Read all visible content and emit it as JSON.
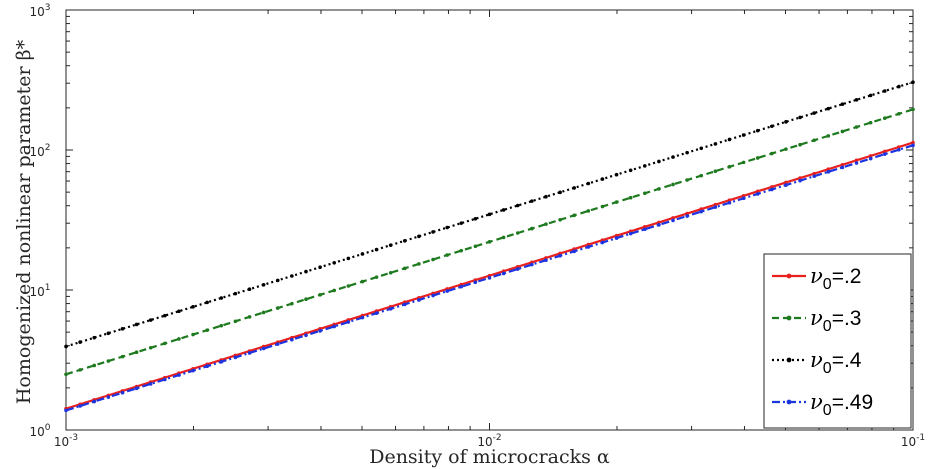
{
  "chart_data": {
    "type": "line",
    "xscale": "log",
    "yscale": "log",
    "xlim": [
      0.001,
      0.1
    ],
    "ylim": [
      1,
      1000
    ],
    "xlabel": "Density of microcracks α",
    "ylabel": "Homogenized nonlinear parameter β*",
    "xticks": [
      {
        "base": "10",
        "exp": "-3"
      },
      {
        "base": "10",
        "exp": "-2"
      },
      {
        "base": "10",
        "exp": "-1"
      }
    ],
    "yticks": [
      {
        "base": "10",
        "exp": "0"
      },
      {
        "base": "10",
        "exp": "1"
      },
      {
        "base": "10",
        "exp": "2"
      },
      {
        "base": "10",
        "exp": "3"
      }
    ],
    "grid": false,
    "legend_position": "bottom-right",
    "series": [
      {
        "name_sym": "ν",
        "name_sub": "0",
        "name_val": "=.2",
        "color": "#e8201e",
        "dash": "solid",
        "marker": "dot",
        "x": [
          0.001,
          0.1
        ],
        "y": [
          1.42,
          113
        ]
      },
      {
        "name_sym": "ν",
        "name_sub": "0",
        "name_val": "=.3",
        "color": "#1e7a1e",
        "dash": "dashed",
        "marker": "dot",
        "x": [
          0.001,
          0.1
        ],
        "y": [
          2.5,
          195
        ]
      },
      {
        "name_sym": "ν",
        "name_sub": "0",
        "name_val": "=.4",
        "color": "#000000",
        "dash": "dotted",
        "marker": "dot",
        "x": [
          0.001,
          0.1
        ],
        "y": [
          3.95,
          305
        ]
      },
      {
        "name_sym": "ν",
        "name_sub": "0",
        "name_val": "=.49",
        "color": "#1c35e0",
        "dash": "dashdot",
        "marker": "dot",
        "x": [
          0.001,
          0.1
        ],
        "y": [
          1.38,
          108
        ]
      }
    ]
  }
}
